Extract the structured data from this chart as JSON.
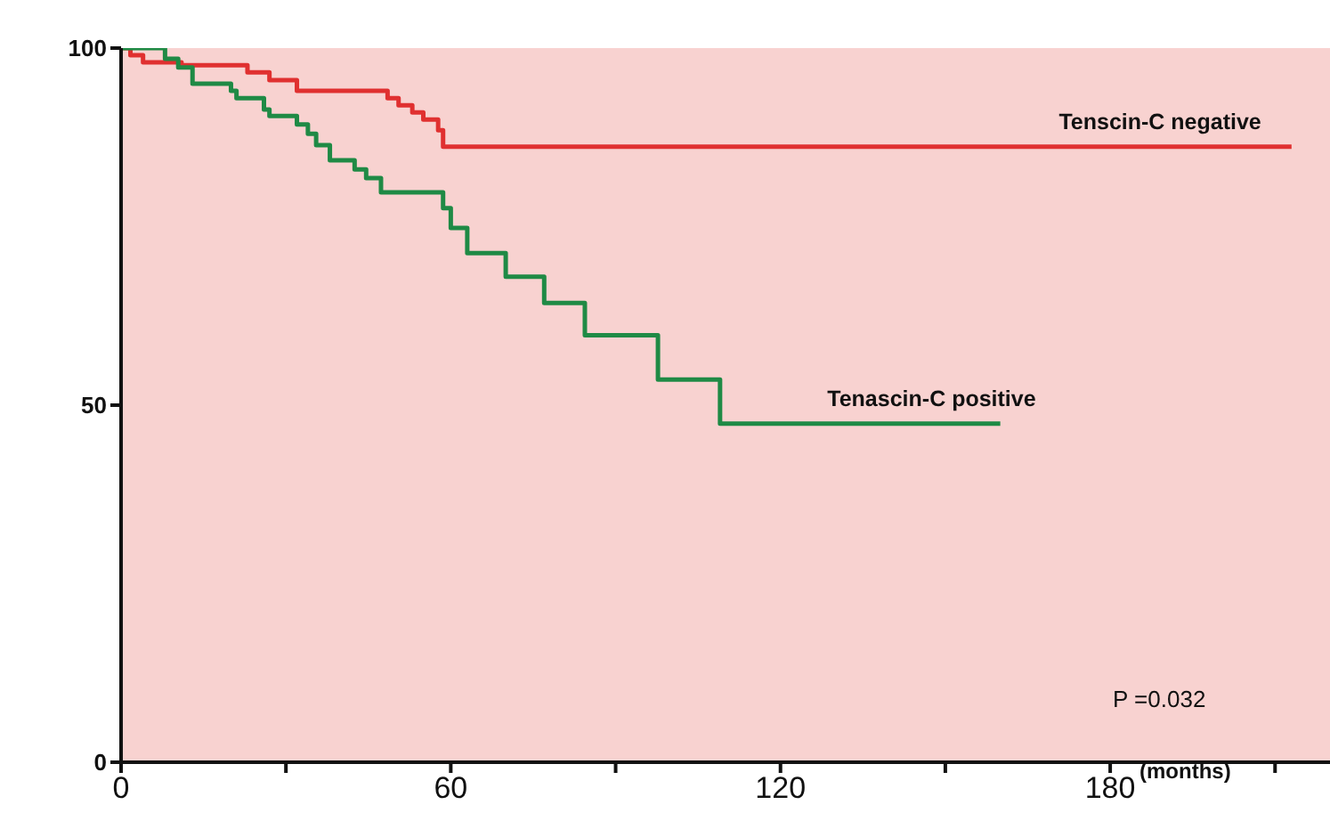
{
  "chart_data": {
    "type": "step",
    "xlabel": "(months)",
    "annotations": [
      "P =0.032"
    ],
    "xlim": [
      0,
      220
    ],
    "ylim": [
      0,
      100
    ],
    "xticks": [
      0,
      {
        "value": 30,
        "label": null
      },
      60,
      {
        "value": 90,
        "label": null
      },
      120,
      {
        "value": 150,
        "label": null
      },
      180,
      {
        "value": 210,
        "label": null
      }
    ],
    "yticks": [
      0,
      50,
      100
    ],
    "grid": false,
    "marker": "none",
    "line_style": "solid",
    "series": [
      {
        "name": "Tenscin-C negative",
        "color": "#e03030",
        "x": [
          0,
          1.7,
          4,
          11,
          23,
          27,
          32,
          48.5,
          50.5,
          53,
          55,
          57.7,
          58.6,
          213
        ],
        "values": [
          100,
          99,
          98,
          97.6,
          96.6,
          95.5,
          94,
          93,
          92,
          91,
          90,
          88.5,
          86.2,
          86.2
        ]
      },
      {
        "name": "Tenascin-C positive",
        "color": "#1f8a45",
        "x": [
          0,
          8,
          10.4,
          13,
          20,
          21,
          26,
          27,
          32,
          34,
          35.5,
          38,
          42.5,
          44.6,
          47.3,
          58.6,
          60,
          63,
          70,
          77,
          84.4,
          97.7,
          109,
          160
        ],
        "values": [
          100,
          98.5,
          97.3,
          95,
          94,
          93,
          91.4,
          90.5,
          89.3,
          88,
          86.4,
          84.3,
          83,
          81.8,
          79.8,
          77.6,
          74.8,
          71.3,
          68,
          64.3,
          59.8,
          53.6,
          47.4,
          47.4
        ]
      }
    ]
  }
}
